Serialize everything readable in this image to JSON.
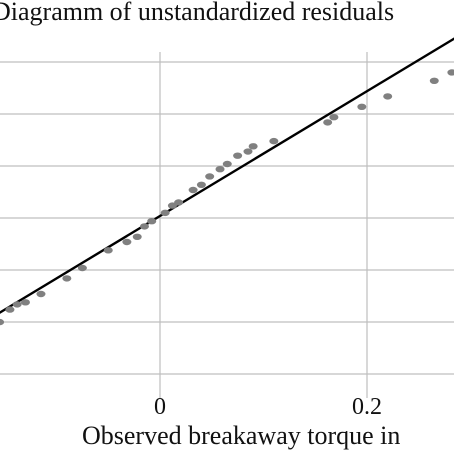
{
  "chart_data": {
    "type": "scatter",
    "title": "Diagramm of unstandardized residuals",
    "xlabel": "Observed breakaway torque in",
    "ylabel": "",
    "xlim": [
      -0.3,
      0.3
    ],
    "ylim": [
      -0.3,
      0.3
    ],
    "x_ticks": [
      0,
      0.2
    ],
    "x_tick_labels": [
      "0",
      "0.2"
    ],
    "grid": true,
    "points_color": "#808080",
    "line_color": "#000000",
    "trend_line": {
      "slope": 0.6,
      "intercept": 0.0
    },
    "points": [
      {
        "x": -0.288,
        "y": -0.168
      },
      {
        "x": -0.275,
        "y": -0.162
      },
      {
        "x": -0.245,
        "y": -0.155
      },
      {
        "x": -0.195,
        "y": -0.145
      },
      {
        "x": -0.183,
        "y": -0.133
      },
      {
        "x": -0.18,
        "y": -0.128
      },
      {
        "x": -0.168,
        "y": -0.115
      },
      {
        "x": -0.162,
        "y": -0.11
      },
      {
        "x": -0.155,
        "y": -0.102
      },
      {
        "x": -0.145,
        "y": -0.09
      },
      {
        "x": -0.138,
        "y": -0.085
      },
      {
        "x": -0.13,
        "y": -0.083
      },
      {
        "x": -0.115,
        "y": -0.075
      },
      {
        "x": -0.09,
        "y": -0.06
      },
      {
        "x": -0.075,
        "y": -0.05
      },
      {
        "x": -0.05,
        "y": -0.033
      },
      {
        "x": -0.032,
        "y": -0.025
      },
      {
        "x": -0.022,
        "y": -0.02
      },
      {
        "x": -0.015,
        "y": -0.01
      },
      {
        "x": -0.008,
        "y": -0.005
      },
      {
        "x": 0.005,
        "y": 0.003
      },
      {
        "x": 0.012,
        "y": 0.01
      },
      {
        "x": 0.018,
        "y": 0.013
      },
      {
        "x": 0.032,
        "y": 0.025
      },
      {
        "x": 0.04,
        "y": 0.03
      },
      {
        "x": 0.048,
        "y": 0.038
      },
      {
        "x": 0.058,
        "y": 0.045
      },
      {
        "x": 0.065,
        "y": 0.05
      },
      {
        "x": 0.075,
        "y": 0.058
      },
      {
        "x": 0.085,
        "y": 0.062
      },
      {
        "x": 0.09,
        "y": 0.067
      },
      {
        "x": 0.11,
        "y": 0.072
      },
      {
        "x": 0.162,
        "y": 0.09
      },
      {
        "x": 0.168,
        "y": 0.095
      },
      {
        "x": 0.195,
        "y": 0.105
      },
      {
        "x": 0.22,
        "y": 0.115
      },
      {
        "x": 0.265,
        "y": 0.13
      },
      {
        "x": 0.282,
        "y": 0.138
      }
    ]
  }
}
